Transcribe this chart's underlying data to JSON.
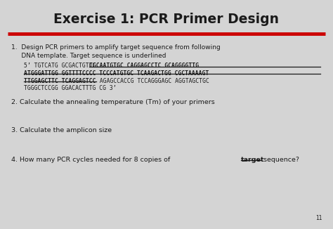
{
  "title": "Exercise 1: PCR Primer Design",
  "bg_color": "#d4d4d4",
  "title_color": "#1a1a1a",
  "text_color": "#1a1a1a",
  "red_line_color": "#cc0000",
  "item1_line1": "1.  Design PCR primers to amplify target sequence from following",
  "item1_line2": "     DNA template. Target sequence is underlined",
  "seq_line1_plain_start": "5’ TGTCATG GCGACTGTCC ",
  "seq_line1_bold": "TGCAATGTGC CAGGAGCCTC GCAGGGGTTG",
  "seq_line2_bold": "ATGGGATTGG GGTTTTCCCC TCCCATGTGC TCAAGACTGG CGCTAAAAGT",
  "seq_line3_bold": "TTGGAGCTTC TCAGGAGTCC",
  "seq_line3_plain": " AGAGCCACCG TCCAGGGAGC AGGTAGCTGC",
  "seq_line4_plain": "TGGGCTCCGG GGACACTTTG CG 3’",
  "item2": "2. Calculate the annealing temperature (Tm) of your primers",
  "item3": "3. Calculate the amplicon size",
  "item4_plain1": "4. How many PCR cycles needed for 8 copies of ",
  "item4_underline": "target",
  "item4_plain2": " sequence?",
  "page_num": "11"
}
